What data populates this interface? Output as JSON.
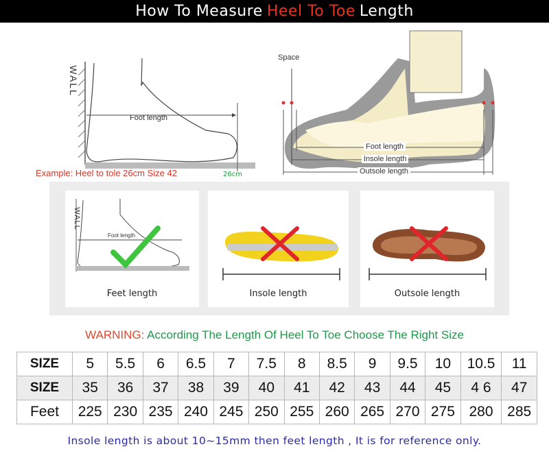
{
  "header": {
    "title_pre": "How To Measure",
    "title_highlight": "Heel To Toe",
    "title_post": "Length"
  },
  "diagram_left": {
    "wall_label": "WALL",
    "foot_length_label": "Foot length",
    "example": "Example: Heel to tole 26cm Size 42",
    "mark": "26cm"
  },
  "diagram_right": {
    "space_label": "Space",
    "foot_length": "Foot length",
    "insole_length": "Insole length",
    "outsole_length": "Outsole length"
  },
  "cards": [
    {
      "caption": "Feet length",
      "status": "correct",
      "wall_label": "WALL",
      "foot_length_label": "Foot length"
    },
    {
      "caption": "Insole length",
      "status": "wrong"
    },
    {
      "caption": "Outsole length",
      "status": "wrong"
    }
  ],
  "warning": {
    "label": "WARNING:",
    "text": "According The Length Of Heel To Toe Choose The Right Size"
  },
  "size_table": {
    "rows": [
      {
        "header": "SIZE",
        "values": [
          "5",
          "5.5",
          "6",
          "6.5",
          "7",
          "7.5",
          "8",
          "8.5",
          "9",
          "9.5",
          "10",
          "10.5",
          "11"
        ]
      },
      {
        "header": "SIZE",
        "values": [
          "35",
          "36",
          "37",
          "38",
          "39",
          "40",
          "41",
          "42",
          "43",
          "44",
          "45",
          "4 6",
          "47"
        ]
      },
      {
        "header": "Feet",
        "values": [
          "225",
          "230",
          "235",
          "240",
          "245",
          "250",
          "255",
          "260",
          "265",
          "270",
          "275",
          "280",
          "285"
        ]
      }
    ]
  },
  "note": "Insole length is about 10~15mm then feet length , It is for reference only.",
  "colors": {
    "highlight": "#e8321f",
    "warning": "#e0482c",
    "green": "#1c9a4a",
    "note": "#2b2ba8"
  }
}
